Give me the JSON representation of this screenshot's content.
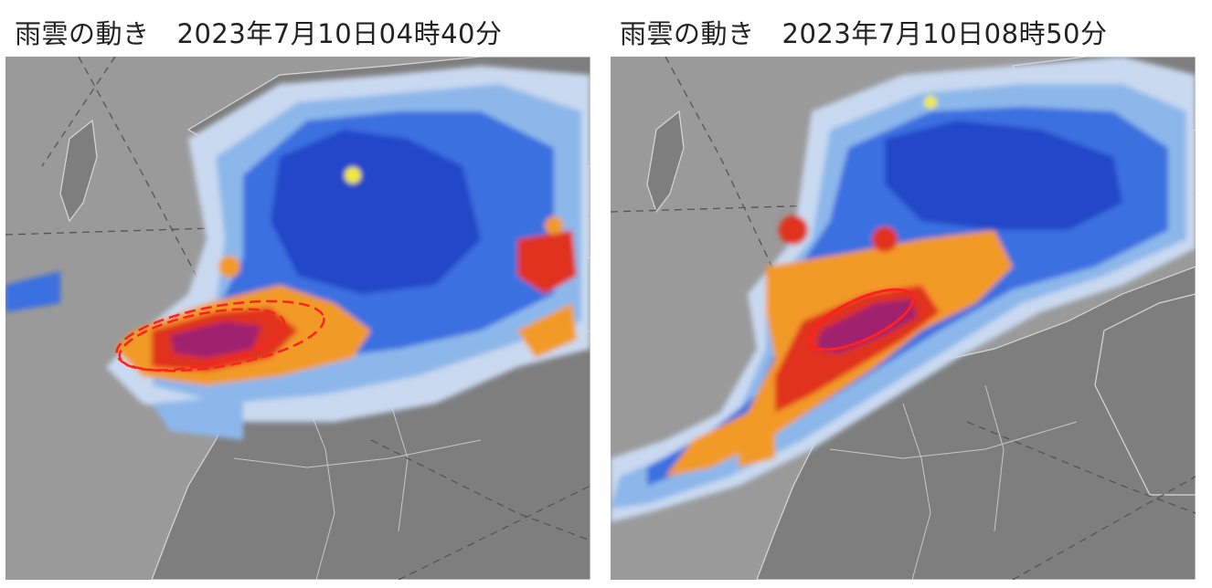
{
  "panels": [
    {
      "title": "雨雲の動き",
      "timestamp": "2023年7月10日04時40分",
      "highlight_style": "dashed"
    },
    {
      "title": "雨雲の動き",
      "timestamp": "2023年7月10日08時50分",
      "highlight_style": "solid"
    }
  ],
  "colors": {
    "land": "#8a8a8a",
    "sea": "#9b9b9b",
    "rain_light": "#c9d9f0",
    "rain_pale_blue": "#8cb7ea",
    "rain_blue": "#3b6fe0",
    "rain_deep_blue": "#2346c8",
    "rain_yellow": "#f2e93a",
    "rain_orange": "#f29a26",
    "rain_red": "#e0301e",
    "rain_purple": "#a0236e",
    "highlight": "#ff2020"
  }
}
